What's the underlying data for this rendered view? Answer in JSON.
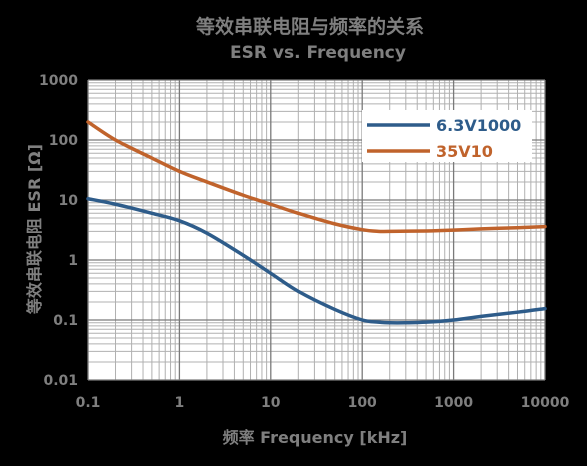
{
  "chart_data": {
    "type": "line",
    "title": "等效串联电阻与频率的关系",
    "subtitle": "ESR vs. Frequency",
    "xlabel": "频率 Frequency [kHz]",
    "ylabel": "等效串联电阻 ESR [Ω]",
    "x_scale": "log",
    "y_scale": "log",
    "xlim": [
      0.1,
      10000
    ],
    "ylim": [
      0.01,
      1000
    ],
    "x_ticks": [
      "0.1",
      "1",
      "10",
      "100",
      "1000",
      "10000"
    ],
    "y_ticks": [
      "0.01",
      "0.1",
      "1",
      "10",
      "100",
      "1000"
    ],
    "grid": true,
    "legend_position": "top-right",
    "series": [
      {
        "name": "6.3V1000",
        "color": "#2e5c8a",
        "x": [
          0.1,
          0.2,
          0.5,
          1,
          2,
          5,
          10,
          20,
          50,
          100,
          150,
          200,
          300,
          500,
          1000,
          2000,
          5000,
          10000
        ],
        "y": [
          10.5,
          8.5,
          6.0,
          4.5,
          2.8,
          1.2,
          0.6,
          0.3,
          0.15,
          0.1,
          0.092,
          0.09,
          0.09,
          0.092,
          0.1,
          0.115,
          0.135,
          0.155
        ]
      },
      {
        "name": "35V10",
        "color": "#c0632c",
        "x": [
          0.1,
          0.2,
          0.5,
          1,
          2,
          5,
          10,
          20,
          50,
          100,
          150,
          200,
          500,
          1000,
          2000,
          5000,
          10000
        ],
        "y": [
          200,
          100,
          50,
          30,
          20,
          12,
          8.5,
          6,
          4.0,
          3.2,
          3.0,
          3.0,
          3.05,
          3.15,
          3.3,
          3.45,
          3.6
        ]
      }
    ]
  }
}
